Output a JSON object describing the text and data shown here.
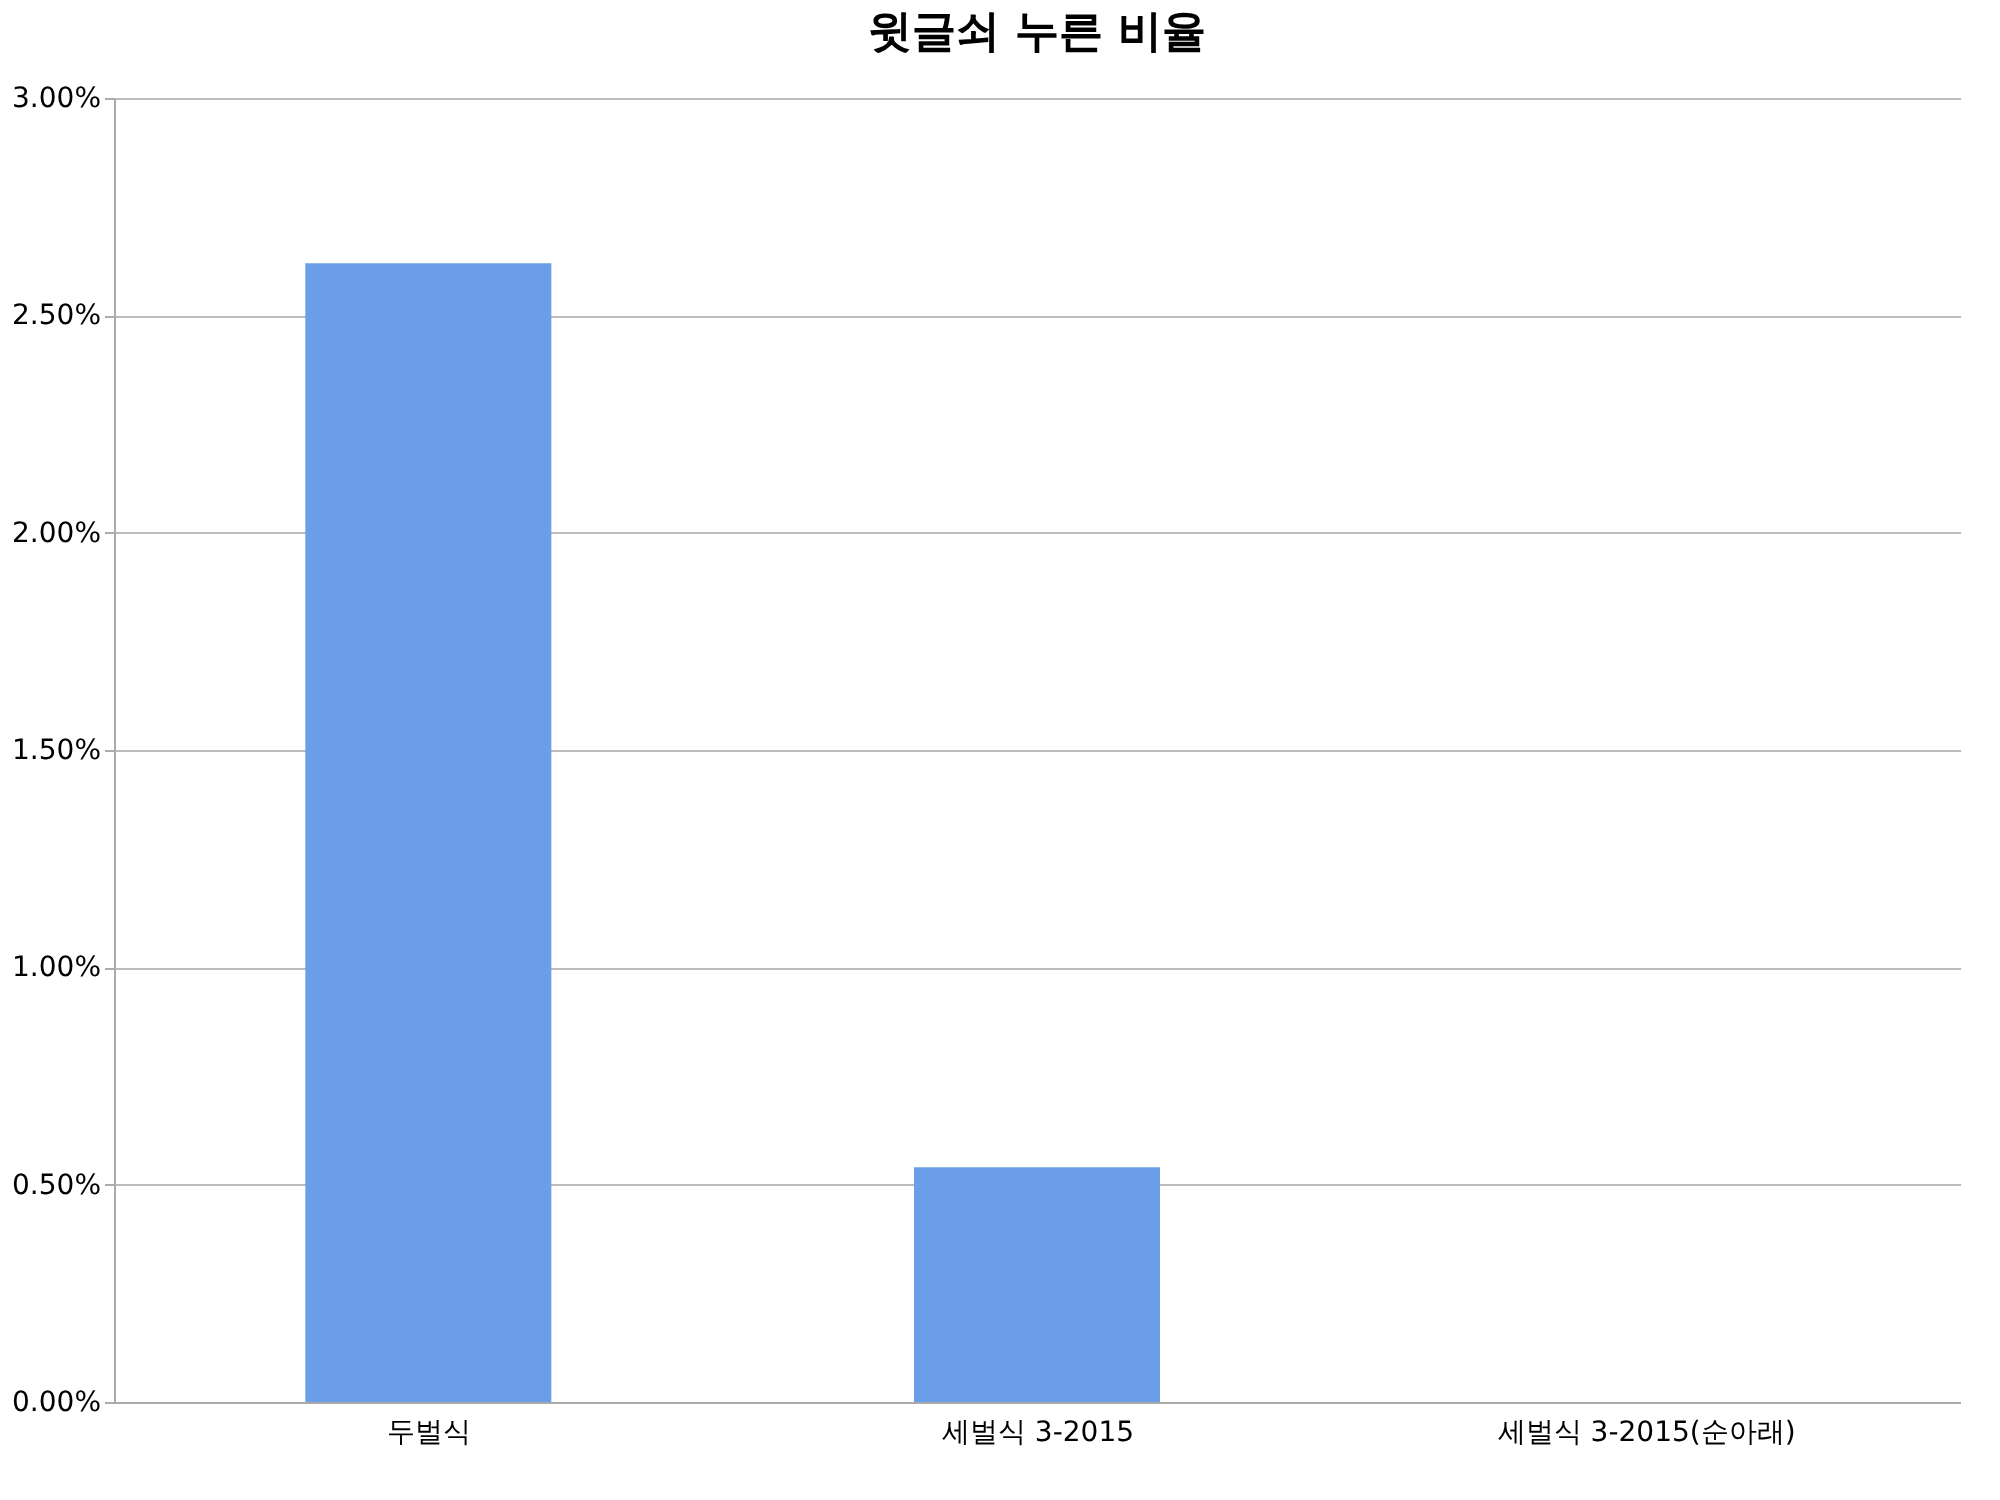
{
  "chart_data": {
    "type": "bar",
    "title": "윗글쇠 누른 비율",
    "categories": [
      "두벌식",
      "세벌식 3-2015",
      "세벌식 3-2015(순아래)"
    ],
    "values": [
      2.62,
      0.54,
      0
    ],
    "color": "#6a9ee6",
    "ylim": [
      0,
      3
    ],
    "yticks": [
      {
        "value": 0,
        "label": "0.00%"
      },
      {
        "value": 0.5,
        "label": "0.50%"
      },
      {
        "value": 1,
        "label": "1.00%"
      },
      {
        "value": 1.5,
        "label": "1.50%"
      },
      {
        "value": 2,
        "label": "2.00%"
      },
      {
        "value": 2.5,
        "label": "2.50%"
      },
      {
        "value": 3,
        "label": "3.00%"
      }
    ],
    "grid": "y"
  }
}
